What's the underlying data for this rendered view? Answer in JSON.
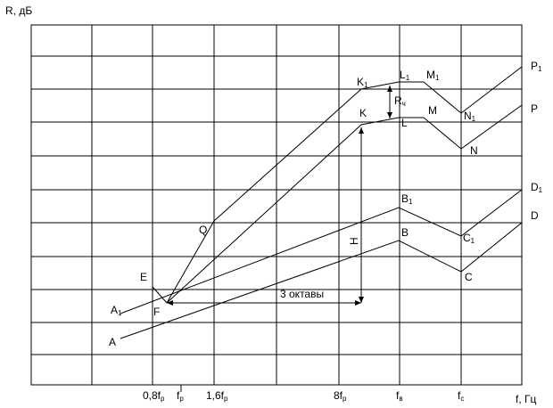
{
  "axis": {
    "y_label": "R, дБ",
    "x_label": "f, Гц"
  },
  "x_ticks": [
    {
      "base": "0,8f",
      "sub": "р"
    },
    {
      "base": "f",
      "sub": "р"
    },
    {
      "base": "1,6f",
      "sub": "р"
    },
    {
      "base": "8f",
      "sub": "р"
    },
    {
      "base": "f",
      "sub": "в"
    },
    {
      "base": "f",
      "sub": "с"
    }
  ],
  "points": [
    {
      "base": "A"
    },
    {
      "base": "A",
      "sub": "1"
    },
    {
      "base": "E"
    },
    {
      "base": "F"
    },
    {
      "base": "Q"
    },
    {
      "base": "K",
      "sub": "1"
    },
    {
      "base": "L",
      "sub": "1"
    },
    {
      "base": "M",
      "sub": "1"
    },
    {
      "base": "N",
      "sub": "1"
    },
    {
      "base": "P",
      "sub": "1"
    },
    {
      "base": "K"
    },
    {
      "base": "L"
    },
    {
      "base": "M"
    },
    {
      "base": "N"
    },
    {
      "base": "P"
    },
    {
      "base": "B",
      "sub": "1"
    },
    {
      "base": "C",
      "sub": "1"
    },
    {
      "base": "D",
      "sub": "1"
    },
    {
      "base": "B"
    },
    {
      "base": "C"
    },
    {
      "base": "D"
    }
  ],
  "annotations": {
    "octaves": "3 октавы",
    "height": "H",
    "rch": {
      "base": "R",
      "sub": "ч"
    }
  }
}
